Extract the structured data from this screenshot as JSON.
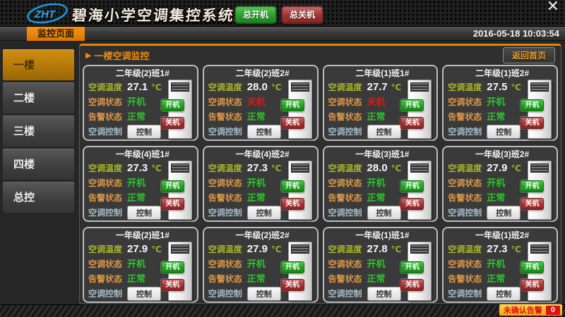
{
  "header": {
    "logo_text": "ZHT",
    "title": "碧海小学空调集控系统",
    "master_on_label": "总开机",
    "master_off_label": "总关机",
    "close_icon": "✕"
  },
  "subheader": {
    "tab_label": "监控页面",
    "datetime": "2016-05-18 10:03:54"
  },
  "sidebar": {
    "items": [
      {
        "label": "一楼",
        "active": true
      },
      {
        "label": "二楼",
        "active": false
      },
      {
        "label": "三楼",
        "active": false
      },
      {
        "label": "四楼",
        "active": false
      },
      {
        "label": "总控",
        "active": false
      }
    ]
  },
  "panel": {
    "arrow_icon": "▶",
    "title": "一楼空调监控",
    "back_button_label": "返回首页"
  },
  "card_labels": {
    "temperature": "空调温度",
    "status": "空调状态",
    "alarm": "告警状态",
    "control": "空调控制",
    "control_button": "控制",
    "on_button": "开机",
    "off_button": "关机",
    "unit": "℃"
  },
  "units": [
    {
      "name": "二年级(2)班1#",
      "temperature": "27.1",
      "status": "开机",
      "status_on": true,
      "alarm": "正常"
    },
    {
      "name": "二年级(2)班2#",
      "temperature": "28.0",
      "status": "关机",
      "status_on": false,
      "alarm": "正常"
    },
    {
      "name": "二年级(1)班1#",
      "temperature": "27.7",
      "status": "关机",
      "status_on": false,
      "alarm": "正常"
    },
    {
      "name": "二年级(1)班2#",
      "temperature": "27.5",
      "status": "开机",
      "status_on": true,
      "alarm": "正常"
    },
    {
      "name": "一年级(4)班1#",
      "temperature": "27.3",
      "status": "开机",
      "status_on": true,
      "alarm": "正常"
    },
    {
      "name": "一年级(4)班2#",
      "temperature": "27.3",
      "status": "开机",
      "status_on": true,
      "alarm": "正常"
    },
    {
      "name": "一年级(3)班1#",
      "temperature": "28.0",
      "status": "开机",
      "status_on": true,
      "alarm": "正常"
    },
    {
      "name": "一年级(3)班2#",
      "temperature": "27.9",
      "status": "开机",
      "status_on": true,
      "alarm": "正常"
    },
    {
      "name": "一年级(2)班1#",
      "temperature": "27.9",
      "status": "开机",
      "status_on": true,
      "alarm": "正常"
    },
    {
      "name": "一年级(2)班2#",
      "temperature": "27.9",
      "status": "开机",
      "status_on": true,
      "alarm": "正常"
    },
    {
      "name": "一年级(1)班1#",
      "temperature": "27.8",
      "status": "开机",
      "status_on": true,
      "alarm": "正常"
    },
    {
      "name": "一年级(1)班2#",
      "temperature": "27.3",
      "status": "开机",
      "status_on": true,
      "alarm": "正常"
    }
  ],
  "footer": {
    "alarm_label": "未确认告警",
    "alarm_count": "0"
  },
  "colors": {
    "accent_orange": "#e8820a",
    "label_olive": "#a9b32b",
    "label_orange": "#dd9747",
    "label_bluegray": "#a3bac8",
    "status_on_green": "#2cc42c",
    "status_off_red": "#e31414",
    "master_on_green": "#2da12d",
    "master_off_red": "#a23737",
    "logo_blue": "#1e9ae0"
  }
}
